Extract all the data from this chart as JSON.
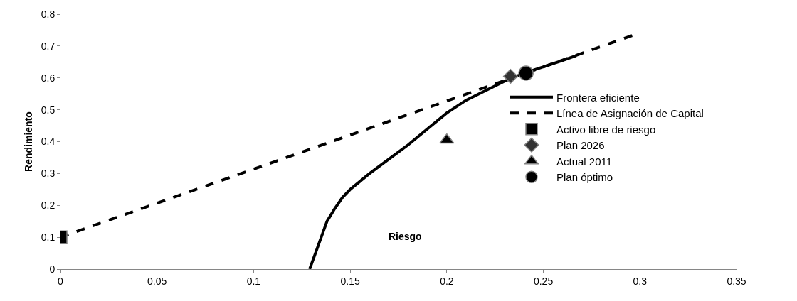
{
  "chart_data": {
    "type": "line",
    "xlabel": "Riesgo",
    "ylabel": "Rendimiento",
    "xlim": [
      0,
      0.35
    ],
    "xticks": [
      0,
      0.05,
      0.1,
      0.15,
      0.2,
      0.25,
      0.3,
      0.35
    ],
    "ylim": [
      0,
      0.8
    ],
    "yticks": [
      0,
      0.1,
      0.2,
      0.3,
      0.4,
      0.5,
      0.6,
      0.7,
      0.8
    ],
    "legend": "right",
    "series": [
      {
        "name": "Frontera eficiente",
        "color": "#000000",
        "line_style": "solid",
        "marker": "none",
        "x": [
          0.129,
          0.132,
          0.135,
          0.138,
          0.142,
          0.146,
          0.15,
          0.155,
          0.16,
          0.17,
          0.18,
          0.19,
          0.2,
          0.21,
          0.22,
          0.23,
          0.24,
          0.25,
          0.26,
          0.267
        ],
        "values": [
          0,
          0.05,
          0.1,
          0.15,
          0.19,
          0.225,
          0.25,
          0.275,
          0.3,
          0.345,
          0.39,
          0.44,
          0.49,
          0.53,
          0.56,
          0.59,
          0.615,
          0.635,
          0.655,
          0.67
        ]
      },
      {
        "name": "Línea de Asignación de Capital",
        "color": "#000000",
        "line_style": "dashed",
        "marker": "none",
        "x": [
          0,
          0.297
        ],
        "values": [
          0.1,
          0.735
        ]
      },
      {
        "name": "Activo libre de riesgo",
        "type": "scatter",
        "color": "#000000",
        "marker": "square",
        "x": [
          0
        ],
        "values": [
          0.1
        ]
      },
      {
        "name": "Plan 2026",
        "type": "scatter",
        "color": "#333333",
        "marker": "diamond",
        "x": [
          0.233
        ],
        "values": [
          0.605
        ]
      },
      {
        "name": "Actual 2011",
        "type": "scatter",
        "color": "#000000",
        "marker": "triangle",
        "x": [
          0.2
        ],
        "values": [
          0.405
        ]
      },
      {
        "name": "Plan óptimo",
        "type": "scatter",
        "color": "#000000",
        "marker": "circle",
        "x": [
          0.241
        ],
        "values": [
          0.615
        ]
      }
    ]
  }
}
